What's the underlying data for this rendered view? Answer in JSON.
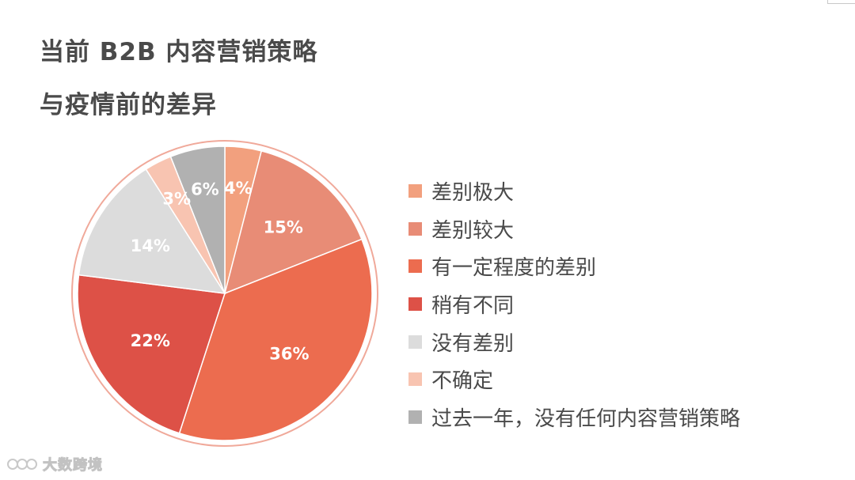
{
  "title": {
    "line1": "当前 B2B 内容营销策略",
    "line2": "与疫情前的差异"
  },
  "chart_data": {
    "type": "pie",
    "title": "当前 B2B 内容营销策略与疫情前的差异",
    "slices": [
      {
        "label": "差别极大",
        "value": 4,
        "display": "4%",
        "color": "#f2a07e"
      },
      {
        "label": "差别较大",
        "value": 15,
        "display": "15%",
        "color": "#e88c76"
      },
      {
        "label": "有一定程度的差别",
        "value": 36,
        "display": "36%",
        "color": "#ec6c4f"
      },
      {
        "label": "稍有不同",
        "value": 22,
        "display": "22%",
        "color": "#dd5147"
      },
      {
        "label": "没有差别",
        "value": 14,
        "display": "14%",
        "color": "#dcdcdc"
      },
      {
        "label": "不确定",
        "value": 3,
        "display": "3%",
        "color": "#f8c4b1"
      },
      {
        "label": "过去一年，没有任何内容营销策略",
        "value": 6,
        "display": "6%",
        "color": "#b1b1b1"
      }
    ],
    "start": "12 o'clock, clockwise",
    "legend_position": "right",
    "outer_ring_color": "#f0a99a"
  },
  "watermark": {
    "text": "大数跨境"
  }
}
